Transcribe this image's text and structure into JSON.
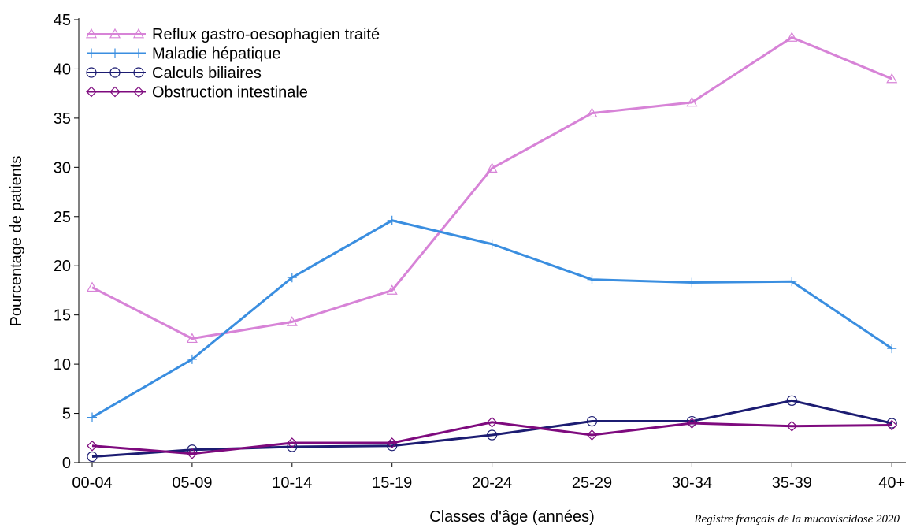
{
  "chart_data": {
    "type": "line",
    "xlabel": "Classes d'âge (années)",
    "ylabel": "Pourcentage de patients",
    "source": "Registre français de la mucoviscidose 2020",
    "categories": [
      "00-04",
      "05-09",
      "10-14",
      "15-19",
      "20-24",
      "25-29",
      "30-34",
      "35-39",
      "40+"
    ],
    "ylim": [
      0,
      45
    ],
    "yticks": [
      0,
      5,
      10,
      15,
      20,
      25,
      30,
      35,
      40,
      45
    ],
    "legend": "upper left",
    "series": [
      {
        "name": "Reflux gastro-oesophagien traité",
        "color": "#d783d7",
        "marker": "triangle",
        "values": [
          17.8,
          12.6,
          14.3,
          17.5,
          29.9,
          35.5,
          36.6,
          43.2,
          39.0
        ]
      },
      {
        "name": "Maladie hépatique",
        "color": "#3a8ee0",
        "marker": "plus",
        "values": [
          4.6,
          10.5,
          18.8,
          24.6,
          22.2,
          18.6,
          18.3,
          18.4,
          11.6
        ]
      },
      {
        "name": "Calculs biliaires",
        "color": "#1c1c72",
        "marker": "circle",
        "values": [
          0.6,
          1.3,
          1.6,
          1.7,
          2.8,
          4.2,
          4.2,
          6.3,
          4.0
        ]
      },
      {
        "name": "Obstruction intestinale",
        "color": "#7e0a7e",
        "marker": "diamond",
        "values": [
          1.7,
          0.9,
          2.0,
          2.0,
          4.1,
          2.8,
          4.0,
          3.7,
          3.8
        ]
      }
    ]
  }
}
